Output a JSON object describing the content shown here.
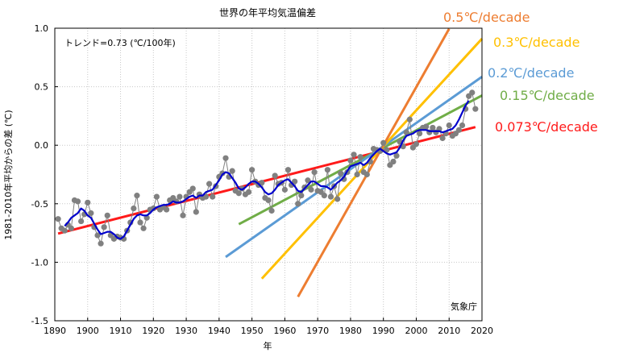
{
  "chart_data": {
    "type": "line",
    "title": "世界の年平均気温偏差",
    "xlabel": "年",
    "ylabel": "1981-2010年平均からの差 (℃)",
    "xlim": [
      1890,
      2020
    ],
    "ylim": [
      -1.5,
      1.0
    ],
    "xticks": [
      1890,
      1900,
      1910,
      1920,
      1930,
      1940,
      1950,
      1960,
      1970,
      1980,
      1990,
      2000,
      2010,
      2020
    ],
    "yticks": [
      -1.5,
      -1.0,
      -0.5,
      0.0,
      0.5,
      1.0
    ],
    "ytick_labels": [
      "-1.5",
      "-1.0",
      "-0.5",
      "0.0",
      "0.5",
      "1.0"
    ],
    "grid": true,
    "annotation_trend": "トレンド=0.73 (℃/100年)",
    "credit": "気象庁",
    "annual": {
      "years": [
        1891,
        1892,
        1893,
        1894,
        1895,
        1896,
        1897,
        1898,
        1899,
        1900,
        1901,
        1902,
        1903,
        1904,
        1905,
        1906,
        1907,
        1908,
        1909,
        1910,
        1911,
        1912,
        1913,
        1914,
        1915,
        1916,
        1917,
        1918,
        1919,
        1920,
        1921,
        1922,
        1923,
        1924,
        1925,
        1926,
        1927,
        1928,
        1929,
        1930,
        1931,
        1932,
        1933,
        1934,
        1935,
        1936,
        1937,
        1938,
        1939,
        1940,
        1941,
        1942,
        1943,
        1944,
        1945,
        1946,
        1947,
        1948,
        1949,
        1950,
        1951,
        1952,
        1953,
        1954,
        1955,
        1956,
        1957,
        1958,
        1959,
        1960,
        1961,
        1962,
        1963,
        1964,
        1965,
        1966,
        1967,
        1968,
        1969,
        1970,
        1971,
        1972,
        1973,
        1974,
        1975,
        1976,
        1977,
        1978,
        1979,
        1980,
        1981,
        1982,
        1983,
        1984,
        1985,
        1986,
        1987,
        1988,
        1989,
        1990,
        1991,
        1992,
        1993,
        1994,
        1995,
        1996,
        1997,
        1998,
        1999,
        2000,
        2001,
        2002,
        2003,
        2004,
        2005,
        2006,
        2007,
        2008,
        2009,
        2010,
        2011,
        2012,
        2013,
        2014,
        2015,
        2016,
        2017,
        2018
      ],
      "values": [
        -0.63,
        -0.71,
        -0.73,
        -0.68,
        -0.71,
        -0.47,
        -0.48,
        -0.65,
        -0.59,
        -0.49,
        -0.58,
        -0.7,
        -0.77,
        -0.84,
        -0.7,
        -0.6,
        -0.77,
        -0.8,
        -0.78,
        -0.79,
        -0.8,
        -0.73,
        -0.66,
        -0.54,
        -0.43,
        -0.66,
        -0.71,
        -0.62,
        -0.55,
        -0.54,
        -0.44,
        -0.55,
        -0.53,
        -0.55,
        -0.47,
        -0.45,
        -0.48,
        -0.44,
        -0.6,
        -0.44,
        -0.4,
        -0.37,
        -0.57,
        -0.42,
        -0.45,
        -0.44,
        -0.33,
        -0.44,
        -0.35,
        -0.27,
        -0.24,
        -0.11,
        -0.27,
        -0.22,
        -0.39,
        -0.41,
        -0.37,
        -0.42,
        -0.4,
        -0.21,
        -0.31,
        -0.34,
        -0.32,
        -0.45,
        -0.47,
        -0.56,
        -0.26,
        -0.33,
        -0.32,
        -0.38,
        -0.21,
        -0.34,
        -0.31,
        -0.5,
        -0.43,
        -0.36,
        -0.3,
        -0.38,
        -0.23,
        -0.39,
        -0.4,
        -0.43,
        -0.21,
        -0.44,
        -0.35,
        -0.46,
        -0.24,
        -0.29,
        -0.23,
        -0.13,
        -0.08,
        -0.25,
        -0.1,
        -0.23,
        -0.25,
        -0.14,
        -0.03,
        -0.04,
        -0.05,
        0.02,
        -0.04,
        -0.17,
        -0.14,
        -0.09,
        0.03,
        -0.01,
        0.11,
        0.22,
        -0.02,
        0.01,
        0.1,
        0.15,
        0.16,
        0.11,
        0.15,
        0.11,
        0.14,
        0.06,
        0.1,
        0.17,
        0.08,
        0.1,
        0.13,
        0.17,
        0.31,
        0.42,
        0.45,
        0.31
      ]
    },
    "moving_average": {
      "years": [
        1893,
        1894,
        1895,
        1896,
        1897,
        1898,
        1899,
        1900,
        1901,
        1902,
        1903,
        1904,
        1905,
        1906,
        1907,
        1908,
        1909,
        1910,
        1911,
        1912,
        1913,
        1914,
        1915,
        1916,
        1917,
        1918,
        1919,
        1920,
        1921,
        1922,
        1923,
        1924,
        1925,
        1926,
        1927,
        1928,
        1929,
        1930,
        1931,
        1932,
        1933,
        1934,
        1935,
        1936,
        1937,
        1938,
        1939,
        1940,
        1941,
        1942,
        1943,
        1944,
        1945,
        1946,
        1947,
        1948,
        1949,
        1950,
        1951,
        1952,
        1953,
        1954,
        1955,
        1956,
        1957,
        1958,
        1959,
        1960,
        1961,
        1962,
        1963,
        1964,
        1965,
        1966,
        1967,
        1968,
        1969,
        1970,
        1971,
        1972,
        1973,
        1974,
        1975,
        1976,
        1977,
        1978,
        1979,
        1980,
        1981,
        1982,
        1983,
        1984,
        1985,
        1986,
        1987,
        1988,
        1989,
        1990,
        1991,
        1992,
        1993,
        1994,
        1995,
        1996,
        1997,
        1998,
        1999,
        2000,
        2001,
        2002,
        2003,
        2004,
        2005,
        2006,
        2007,
        2008,
        2009,
        2010,
        2011,
        2012,
        2013,
        2014,
        2015,
        2016
      ],
      "values": [
        -0.69,
        -0.66,
        -0.62,
        -0.6,
        -0.58,
        -0.54,
        -0.56,
        -0.6,
        -0.62,
        -0.67,
        -0.72,
        -0.76,
        -0.75,
        -0.74,
        -0.74,
        -0.76,
        -0.79,
        -0.8,
        -0.78,
        -0.73,
        -0.68,
        -0.63,
        -0.6,
        -0.59,
        -0.6,
        -0.6,
        -0.58,
        -0.55,
        -0.53,
        -0.52,
        -0.51,
        -0.51,
        -0.5,
        -0.48,
        -0.49,
        -0.49,
        -0.48,
        -0.46,
        -0.44,
        -0.43,
        -0.45,
        -0.43,
        -0.43,
        -0.4,
        -0.39,
        -0.38,
        -0.34,
        -0.3,
        -0.25,
        -0.23,
        -0.24,
        -0.28,
        -0.32,
        -0.37,
        -0.38,
        -0.36,
        -0.33,
        -0.31,
        -0.31,
        -0.33,
        -0.36,
        -0.4,
        -0.42,
        -0.41,
        -0.38,
        -0.34,
        -0.32,
        -0.3,
        -0.29,
        -0.32,
        -0.35,
        -0.39,
        -0.4,
        -0.37,
        -0.34,
        -0.31,
        -0.31,
        -0.33,
        -0.35,
        -0.35,
        -0.36,
        -0.38,
        -0.35,
        -0.32,
        -0.3,
        -0.27,
        -0.22,
        -0.18,
        -0.17,
        -0.16,
        -0.15,
        -0.17,
        -0.15,
        -0.11,
        -0.08,
        -0.05,
        -0.03,
        -0.05,
        -0.07,
        -0.08,
        -0.07,
        -0.06,
        -0.02,
        0.04,
        0.08,
        0.09,
        0.1,
        0.12,
        0.13,
        0.13,
        0.13,
        0.12,
        0.12,
        0.12,
        0.12,
        0.11,
        0.12,
        0.13,
        0.14,
        0.17,
        0.22,
        0.28,
        0.34,
        0.38
      ]
    },
    "trend_lines": [
      {
        "label": "0.073℃/decade",
        "color": "#ff1a1a",
        "x": [
          1891,
          2018
        ],
        "y": [
          -0.755,
          0.155
        ]
      },
      {
        "label": "0.15℃/decade",
        "color": "#70ad47",
        "x": [
          1946,
          2020
        ],
        "y": [
          -0.675,
          0.425
        ]
      },
      {
        "label": "0.2℃/decade",
        "color": "#5b9bd5",
        "x": [
          1942,
          2020
        ],
        "y": [
          -0.955,
          0.585
        ]
      },
      {
        "label": "0.3℃/decade",
        "color": "#ffc000",
        "x": [
          1953,
          2020
        ],
        "y": [
          -1.14,
          0.91
        ]
      },
      {
        "label": "0.5℃/decade",
        "color": "#ed7d31",
        "x": [
          1964,
          2010
        ],
        "y": [
          -1.295,
          0.995
        ]
      }
    ],
    "colors": {
      "points": "#808080",
      "annual_line": "#808080",
      "moving_average": "#0000cc",
      "grid": "#c8c8c8"
    }
  }
}
